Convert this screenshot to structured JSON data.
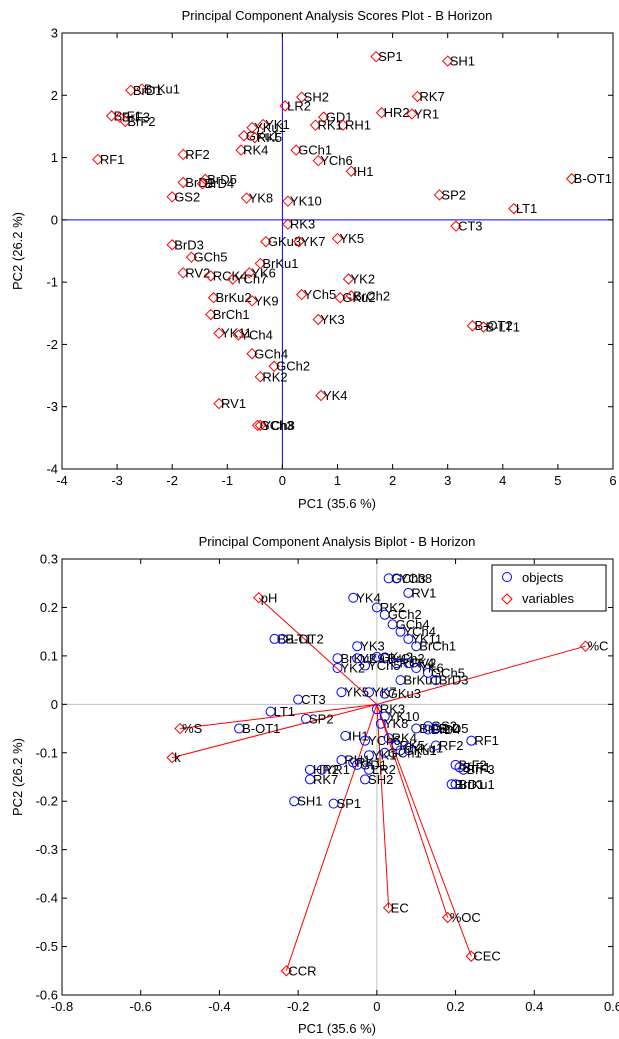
{
  "colors": {
    "object_marker": "#0000ff",
    "variable_marker": "#ff0000",
    "scores_marker": "#ff0000",
    "scores_refline": "#0000ff",
    "biplot_refline": "#c0c0c0",
    "vector_line": "#ff0000"
  },
  "chart_data": [
    {
      "type": "scatter",
      "title": "Principal Component Analysis Scores Plot - B Horizon",
      "xlabel": "PC1  (35.6 %)",
      "ylabel": "PC2  (26.2 %)",
      "xlim": [
        -4,
        6
      ],
      "ylim": [
        -4,
        3
      ],
      "xticks": [
        -4,
        -3,
        -2,
        -1,
        0,
        1,
        2,
        3,
        4,
        5,
        6
      ],
      "yticks": [
        -4,
        -3,
        -2,
        -1,
        0,
        1,
        2,
        3
      ],
      "xtick_labels": [
        "-4",
        "-3",
        "-2",
        "-1",
        "0",
        "1",
        "2",
        "3",
        "4",
        "5",
        "6"
      ],
      "ytick_labels": [
        "-4",
        "-3",
        "-2",
        "-1",
        "0",
        "1",
        "2",
        "3"
      ],
      "marker": "diamond",
      "reference_lines": [
        0,
        0
      ],
      "points": [
        {
          "label": "SP1",
          "x": 1.7,
          "y": 2.62
        },
        {
          "label": "SH1",
          "x": 3.0,
          "y": 2.55
        },
        {
          "label": "BrKu1",
          "x": -2.55,
          "y": 2.1
        },
        {
          "label": "BrD1",
          "x": -2.75,
          "y": 2.08
        },
        {
          "label": "SH2",
          "x": 0.35,
          "y": 1.97
        },
        {
          "label": "RK7",
          "x": 2.45,
          "y": 1.98
        },
        {
          "label": "LR2",
          "x": 0.05,
          "y": 1.83
        },
        {
          "label": "HR2",
          "x": 1.8,
          "y": 1.72
        },
        {
          "label": "YR1",
          "x": 2.35,
          "y": 1.7
        },
        {
          "label": "BrF1",
          "x": -3.1,
          "y": 1.67
        },
        {
          "label": "BrF3",
          "x": -2.95,
          "y": 1.65
        },
        {
          "label": "BrF2",
          "x": -2.85,
          "y": 1.58
        },
        {
          "label": "GD1",
          "x": 0.75,
          "y": 1.65
        },
        {
          "label": "RH1",
          "x": 1.1,
          "y": 1.52
        },
        {
          "label": "RK1",
          "x": 0.6,
          "y": 1.52
        },
        {
          "label": "YK1",
          "x": -0.35,
          "y": 1.53
        },
        {
          "label": "YKu1",
          "x": -0.55,
          "y": 1.48
        },
        {
          "label": "GKu1",
          "x": -0.7,
          "y": 1.35
        },
        {
          "label": "RK5",
          "x": -0.5,
          "y": 1.32
        },
        {
          "label": "RK4",
          "x": -0.75,
          "y": 1.12
        },
        {
          "label": "GCh1",
          "x": 0.25,
          "y": 1.12
        },
        {
          "label": "RF1",
          "x": -3.35,
          "y": 0.97
        },
        {
          "label": "RF2",
          "x": -1.8,
          "y": 1.05
        },
        {
          "label": "YCh6",
          "x": 0.65,
          "y": 0.95
        },
        {
          "label": "IH1",
          "x": 1.25,
          "y": 0.78
        },
        {
          "label": "B-OT1",
          "x": 5.25,
          "y": 0.66
        },
        {
          "label": "BrD5",
          "x": -1.4,
          "y": 0.65
        },
        {
          "label": "BrD2",
          "x": -1.8,
          "y": 0.6
        },
        {
          "label": "BrD4",
          "x": -1.45,
          "y": 0.58
        },
        {
          "label": "SP2",
          "x": 2.85,
          "y": 0.4
        },
        {
          "label": "GS2",
          "x": -2.0,
          "y": 0.37
        },
        {
          "label": "YK8",
          "x": -0.65,
          "y": 0.35
        },
        {
          "label": "YK10",
          "x": 0.1,
          "y": 0.3
        },
        {
          "label": "LT1",
          "x": 4.2,
          "y": 0.18
        },
        {
          "label": "RK3",
          "x": 0.1,
          "y": -0.07
        },
        {
          "label": "CT3",
          "x": 3.15,
          "y": -0.1
        },
        {
          "label": "GKu3",
          "x": -0.3,
          "y": -0.35
        },
        {
          "label": "YK7",
          "x": 0.3,
          "y": -0.35
        },
        {
          "label": "YK5",
          "x": 1.0,
          "y": -0.3
        },
        {
          "label": "BrD3",
          "x": -2.0,
          "y": -0.4
        },
        {
          "label": "GCh5",
          "x": -1.65,
          "y": -0.6
        },
        {
          "label": "BrKu1",
          "x": -0.4,
          "y": -0.7
        },
        {
          "label": "RV2",
          "x": -1.8,
          "y": -0.85
        },
        {
          "label": "RCK4",
          "x": -1.3,
          "y": -0.9
        },
        {
          "label": "YCh7",
          "x": -0.9,
          "y": -0.95
        },
        {
          "label": "YK6",
          "x": -0.6,
          "y": -0.85
        },
        {
          "label": "YK2",
          "x": 1.2,
          "y": -0.95
        },
        {
          "label": "YCh5",
          "x": 0.35,
          "y": -1.2
        },
        {
          "label": "GKu2",
          "x": 1.05,
          "y": -1.25
        },
        {
          "label": "BrCh2",
          "x": 1.25,
          "y": -1.22
        },
        {
          "label": "BrKu2",
          "x": -1.25,
          "y": -1.25
        },
        {
          "label": "YK9",
          "x": -0.55,
          "y": -1.3
        },
        {
          "label": "B-OT2",
          "x": 3.45,
          "y": -1.7
        },
        {
          "label": "B-LT1",
          "x": 3.65,
          "y": -1.72
        },
        {
          "label": "BrCh1",
          "x": -1.3,
          "y": -1.52
        },
        {
          "label": "YK3",
          "x": 0.65,
          "y": -1.6
        },
        {
          "label": "YK11",
          "x": -1.15,
          "y": -1.82
        },
        {
          "label": "YCh4",
          "x": -0.8,
          "y": -1.85
        },
        {
          "label": "GCh4",
          "x": -0.55,
          "y": -2.15
        },
        {
          "label": "GCh2",
          "x": -0.15,
          "y": -2.35
        },
        {
          "label": "RK2",
          "x": -0.4,
          "y": -2.52
        },
        {
          "label": "YK4",
          "x": 0.7,
          "y": -2.82
        },
        {
          "label": "RV1",
          "x": -1.15,
          "y": -2.95
        },
        {
          "label": "GCh3",
          "x": -0.45,
          "y": -3.3
        },
        {
          "label": "YCh8",
          "x": -0.4,
          "y": -3.3
        }
      ]
    },
    {
      "type": "scatter",
      "title": "Principal Component Analysis Biplot - B Horizon",
      "xlabel": "PC1  (35.6 %)",
      "ylabel": "PC2  (26.2 %)",
      "xlim": [
        -0.8,
        0.6
      ],
      "ylim": [
        -0.6,
        0.3
      ],
      "xticks": [
        -0.8,
        -0.6,
        -0.4,
        -0.2,
        0,
        0.2,
        0.4,
        0.6
      ],
      "yticks": [
        -0.6,
        -0.5,
        -0.4,
        -0.3,
        -0.2,
        -0.1,
        0,
        0.1,
        0.2,
        0.3
      ],
      "xtick_labels": [
        "-0.8",
        "-0.6",
        "-0.4",
        "-0.2",
        "0",
        "0.2",
        "0.4",
        "0.6"
      ],
      "ytick_labels": [
        "-0.6",
        "-0.5",
        "-0.4",
        "-0.3",
        "-0.2",
        "-0.1",
        "0",
        "0.1",
        "0.2",
        "0.3"
      ],
      "legend": {
        "placement": "top-right",
        "entries": [
          {
            "label": "objects",
            "marker": "circle"
          },
          {
            "label": "variables",
            "marker": "diamond"
          }
        ]
      },
      "variables": [
        {
          "label": "pH",
          "x": -0.3,
          "y": 0.22
        },
        {
          "label": "%C",
          "x": 0.53,
          "y": 0.12
        },
        {
          "label": "%S",
          "x": -0.5,
          "y": -0.05
        },
        {
          "label": "k",
          "x": -0.52,
          "y": -0.11
        },
        {
          "label": "EC",
          "x": 0.03,
          "y": -0.42
        },
        {
          "label": "%OC",
          "x": 0.18,
          "y": -0.44
        },
        {
          "label": "CEC",
          "x": 0.24,
          "y": -0.52
        },
        {
          "label": "CCR",
          "x": -0.23,
          "y": -0.55
        }
      ],
      "objects": [
        {
          "label": "GCh3",
          "x": 0.03,
          "y": 0.26
        },
        {
          "label": "YCh8",
          "x": 0.05,
          "y": 0.26
        },
        {
          "label": "RV1",
          "x": 0.08,
          "y": 0.23
        },
        {
          "label": "YK4",
          "x": -0.06,
          "y": 0.22
        },
        {
          "label": "RK2",
          "x": 0.0,
          "y": 0.2
        },
        {
          "label": "GCh2",
          "x": 0.02,
          "y": 0.185
        },
        {
          "label": "GCh4",
          "x": 0.04,
          "y": 0.165
        },
        {
          "label": "YCh4",
          "x": 0.06,
          "y": 0.15
        },
        {
          "label": "YK11",
          "x": 0.08,
          "y": 0.135
        },
        {
          "label": "BrCh1",
          "x": 0.1,
          "y": 0.12
        },
        {
          "label": "B-LT1",
          "x": -0.26,
          "y": 0.135
        },
        {
          "label": "B-OT2",
          "x": -0.24,
          "y": 0.135
        },
        {
          "label": "YK3",
          "x": -0.05,
          "y": 0.12
        },
        {
          "label": "BrKu2",
          "x": -0.1,
          "y": 0.095
        },
        {
          "label": "YK9",
          "x": -0.05,
          "y": 0.095
        },
        {
          "label": "GKu2",
          "x": 0.0,
          "y": 0.098
        },
        {
          "label": "BrCh2",
          "x": 0.02,
          "y": 0.095
        },
        {
          "label": "YCh5",
          "x": -0.03,
          "y": 0.08
        },
        {
          "label": "YK2",
          "x": -0.1,
          "y": 0.075
        },
        {
          "label": "RCK4",
          "x": 0.05,
          "y": 0.085
        },
        {
          "label": "RV2",
          "x": 0.08,
          "y": 0.085
        },
        {
          "label": "YK6",
          "x": 0.1,
          "y": 0.075
        },
        {
          "label": "GCh5",
          "x": 0.13,
          "y": 0.065
        },
        {
          "label": "BrD3",
          "x": 0.15,
          "y": 0.05
        },
        {
          "label": "BrKu1",
          "x": 0.06,
          "y": 0.05
        },
        {
          "label": "YK5",
          "x": -0.09,
          "y": 0.025
        },
        {
          "label": "YK7",
          "x": -0.02,
          "y": 0.025
        },
        {
          "label": "GKu3",
          "x": 0.02,
          "y": 0.022
        },
        {
          "label": "CT3",
          "x": -0.2,
          "y": 0.01
        },
        {
          "label": "LT1",
          "x": -0.27,
          "y": -0.015
        },
        {
          "label": "SP2",
          "x": -0.18,
          "y": -0.03
        },
        {
          "label": "B-OT1",
          "x": -0.35,
          "y": -0.05
        },
        {
          "label": "RK3",
          "x": 0.0,
          "y": -0.01
        },
        {
          "label": "YK10",
          "x": 0.02,
          "y": -0.025
        },
        {
          "label": "YK8",
          "x": 0.01,
          "y": -0.04
        },
        {
          "label": "GS2",
          "x": 0.13,
          "y": -0.045
        },
        {
          "label": "BrD2",
          "x": 0.1,
          "y": -0.05
        },
        {
          "label": "BrD4",
          "x": 0.13,
          "y": -0.052
        },
        {
          "label": "BrD5",
          "x": 0.15,
          "y": -0.05
        },
        {
          "label": "IH1",
          "x": -0.08,
          "y": -0.065
        },
        {
          "label": "YCh6",
          "x": -0.03,
          "y": -0.075
        },
        {
          "label": "RK4",
          "x": 0.03,
          "y": -0.07
        },
        {
          "label": "RK5",
          "x": 0.05,
          "y": -0.085
        },
        {
          "label": "GKu1",
          "x": 0.06,
          "y": -0.095
        },
        {
          "label": "YKu1",
          "x": 0.08,
          "y": -0.09
        },
        {
          "label": "RF2",
          "x": 0.15,
          "y": -0.085
        },
        {
          "label": "RF1",
          "x": 0.24,
          "y": -0.075
        },
        {
          "label": "GCh1",
          "x": 0.02,
          "y": -0.1
        },
        {
          "label": "YK1",
          "x": -0.02,
          "y": -0.105
        },
        {
          "label": "RK1",
          "x": -0.06,
          "y": -0.12
        },
        {
          "label": "RH1",
          "x": -0.09,
          "y": -0.115
        },
        {
          "label": "GD1",
          "x": -0.05,
          "y": -0.125
        },
        {
          "label": "HR2",
          "x": -0.17,
          "y": -0.135
        },
        {
          "label": "YR1",
          "x": -0.14,
          "y": -0.135
        },
        {
          "label": "RK7",
          "x": -0.17,
          "y": -0.155
        },
        {
          "label": "LR2",
          "x": -0.02,
          "y": -0.135
        },
        {
          "label": "SH2",
          "x": -0.03,
          "y": -0.155
        },
        {
          "label": "BrF1",
          "x": 0.21,
          "y": -0.13
        },
        {
          "label": "BrF2",
          "x": 0.2,
          "y": -0.125
        },
        {
          "label": "BrF3",
          "x": 0.22,
          "y": -0.135
        },
        {
          "label": "BrD1",
          "x": 0.19,
          "y": -0.165
        },
        {
          "label": "BrKu1",
          "x": 0.2,
          "y": -0.165
        },
        {
          "label": "SH1",
          "x": -0.21,
          "y": -0.2
        },
        {
          "label": "SP1",
          "x": -0.11,
          "y": -0.205
        }
      ]
    }
  ]
}
